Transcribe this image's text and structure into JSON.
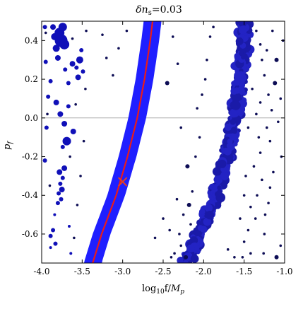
{
  "chart_data": {
    "type": "scatter",
    "title": "δn_s=0.03",
    "title_parts": [
      "δn",
      "s",
      "=0.03"
    ],
    "xlabel": "log10f/Mp",
    "xlabel_parts": [
      "log",
      "10",
      "f/",
      "M",
      "p"
    ],
    "ylabel": "p_f",
    "ylabel_parts": [
      "p",
      "f"
    ],
    "xlim": [
      -4.0,
      -1.0
    ],
    "ylim": [
      -0.75,
      0.5
    ],
    "xticks": [
      -4.0,
      -3.5,
      -3.0,
      -2.5,
      -2.0,
      -1.5,
      -1.0
    ],
    "xtick_labels": [
      "-4.0",
      "-3.5",
      "-3.0",
      "-2.5",
      "-2.0",
      "-1.5",
      "-1.0"
    ],
    "yticks": [
      -0.6,
      -0.4,
      -0.2,
      0.0,
      0.2,
      0.4
    ],
    "ytick_labels": [
      "-0.6",
      "-0.4",
      "-0.2",
      "0.0",
      "0.2",
      "0.4"
    ],
    "horizontal_reference_line": {
      "y": 0.0,
      "color": "#aaaaaa"
    },
    "colors": {
      "bright_band": "#1f1fff",
      "dark_band": "#1a1aa8",
      "scatter_points": "#0d0d55",
      "left_clusters": "#1010b8",
      "curve": "#e81c1c",
      "marker": "#e8401c"
    },
    "bright_band": {
      "description_points": [
        {
          "y": -0.75,
          "x": -3.37
        },
        {
          "y": -0.6,
          "x": -3.26
        },
        {
          "y": -0.4,
          "x": -3.08
        },
        {
          "y": -0.2,
          "x": -2.94
        },
        {
          "y": 0.0,
          "x": -2.82
        },
        {
          "y": 0.2,
          "x": -2.73
        },
        {
          "y": 0.4,
          "x": -2.66
        },
        {
          "y": 0.5,
          "x": -2.63
        }
      ],
      "half_width_x": 0.11
    },
    "red_curve": [
      {
        "x": -3.37,
        "y": -0.75
      },
      {
        "x": -3.26,
        "y": -0.6
      },
      {
        "x": -3.08,
        "y": -0.4
      },
      {
        "x": -2.94,
        "y": -0.2
      },
      {
        "x": -2.82,
        "y": 0.0
      },
      {
        "x": -2.73,
        "y": 0.2
      },
      {
        "x": -2.66,
        "y": 0.4
      },
      {
        "x": -2.63,
        "y": 0.5
      }
    ],
    "best_fit_marker": {
      "x": -3.0,
      "y": -0.33,
      "symbol": "x"
    },
    "dark_band": {
      "center_points": [
        {
          "y": -0.75,
          "x": -2.22
        },
        {
          "y": -0.6,
          "x": -2.05
        },
        {
          "y": -0.4,
          "x": -1.85
        },
        {
          "y": -0.2,
          "x": -1.71
        },
        {
          "y": 0.0,
          "x": -1.62
        },
        {
          "y": 0.2,
          "x": -1.55
        },
        {
          "y": 0.4,
          "x": -1.5
        },
        {
          "y": 0.5,
          "x": -1.48
        }
      ],
      "half_width_x": 0.1
    },
    "left_clusters": [
      {
        "x": -3.84,
        "y": 0.42,
        "size": 5
      },
      {
        "x": -3.82,
        "y": 0.36,
        "size": 5
      },
      {
        "x": -3.78,
        "y": 0.44,
        "size": 7
      },
      {
        "x": -3.76,
        "y": 0.4,
        "size": 9
      },
      {
        "x": -3.74,
        "y": 0.47,
        "size": 6
      },
      {
        "x": -3.72,
        "y": 0.38,
        "size": 7
      },
      {
        "x": -3.8,
        "y": 0.31,
        "size": 4
      },
      {
        "x": -3.86,
        "y": 0.47,
        "size": 4
      },
      {
        "x": -3.71,
        "y": 0.25,
        "size": 3
      },
      {
        "x": -3.67,
        "y": 0.18,
        "size": 3
      },
      {
        "x": -3.62,
        "y": 0.28,
        "size": 4
      },
      {
        "x": -3.57,
        "y": 0.26,
        "size": 3
      },
      {
        "x": -3.55,
        "y": 0.21,
        "size": 4
      },
      {
        "x": -3.53,
        "y": 0.3,
        "size": 5
      },
      {
        "x": -3.51,
        "y": 0.35,
        "size": 3
      },
      {
        "x": -3.49,
        "y": 0.24,
        "size": 3
      },
      {
        "x": -3.89,
        "y": 0.19,
        "size": 3
      },
      {
        "x": -3.95,
        "y": 0.29,
        "size": 3
      },
      {
        "x": -3.96,
        "y": 0.47,
        "size": 3
      },
      {
        "x": -3.92,
        "y": 0.11,
        "size": 3
      },
      {
        "x": -3.82,
        "y": 0.08,
        "size": 4
      },
      {
        "x": -3.77,
        "y": 0.02,
        "size": 4
      },
      {
        "x": -3.72,
        "y": -0.03,
        "size": 4
      },
      {
        "x": -3.67,
        "y": 0.06,
        "size": 3
      },
      {
        "x": -3.61,
        "y": -0.07,
        "size": 4
      },
      {
        "x": -3.69,
        "y": -0.12,
        "size": 6
      },
      {
        "x": -3.74,
        "y": -0.15,
        "size": 3
      },
      {
        "x": -3.94,
        "y": -0.05,
        "size": 3
      },
      {
        "x": -3.96,
        "y": -0.22,
        "size": 3
      },
      {
        "x": -3.78,
        "y": -0.28,
        "size": 4
      },
      {
        "x": -3.74,
        "y": -0.31,
        "size": 3
      },
      {
        "x": -3.72,
        "y": -0.26,
        "size": 4
      },
      {
        "x": -3.77,
        "y": -0.34,
        "size": 3
      },
      {
        "x": -3.79,
        "y": -0.39,
        "size": 3
      },
      {
        "x": -3.75,
        "y": -0.37,
        "size": 4
      },
      {
        "x": -3.8,
        "y": -0.44,
        "size": 3
      },
      {
        "x": -3.76,
        "y": -0.42,
        "size": 3
      },
      {
        "x": -3.86,
        "y": -0.58,
        "size": 3
      },
      {
        "x": -3.89,
        "y": -0.61,
        "size": 3
      },
      {
        "x": -3.83,
        "y": -0.65,
        "size": 3
      },
      {
        "x": -3.89,
        "y": -0.67,
        "size": 2
      },
      {
        "x": -3.84,
        "y": -0.5,
        "size": 2
      },
      {
        "x": -3.66,
        "y": -0.56,
        "size": 2
      },
      {
        "x": -3.64,
        "y": -0.7,
        "size": 2
      }
    ],
    "scatter_points": [
      {
        "x": -3.95,
        "y": 0.44
      },
      {
        "x": -3.93,
        "y": 0.02
      },
      {
        "x": -3.9,
        "y": -0.35
      },
      {
        "x": -3.62,
        "y": 0.41
      },
      {
        "x": -3.58,
        "y": 0.07
      },
      {
        "x": -3.65,
        "y": -0.2
      },
      {
        "x": -3.56,
        "y": -0.45
      },
      {
        "x": -3.6,
        "y": -0.62
      },
      {
        "x": -3.46,
        "y": 0.15
      },
      {
        "x": -3.48,
        "y": -0.12
      },
      {
        "x": -3.52,
        "y": -0.3
      },
      {
        "x": -3.45,
        "y": 0.45
      },
      {
        "x": -3.25,
        "y": 0.43
      },
      {
        "x": -3.2,
        "y": 0.31
      },
      {
        "x": -3.05,
        "y": 0.36
      },
      {
        "x": -2.95,
        "y": 0.45
      },
      {
        "x": -3.12,
        "y": 0.22
      },
      {
        "x": -2.38,
        "y": 0.42
      },
      {
        "x": -2.32,
        "y": 0.28
      },
      {
        "x": -2.45,
        "y": 0.18
      },
      {
        "x": -2.28,
        "y": -0.05
      },
      {
        "x": -2.42,
        "y": -0.58
      },
      {
        "x": -2.5,
        "y": -0.52
      },
      {
        "x": -2.6,
        "y": -0.62
      },
      {
        "x": -2.36,
        "y": -0.7
      },
      {
        "x": -2.2,
        "y": -0.25
      },
      {
        "x": -2.14,
        "y": -0.38
      },
      {
        "x": -2.18,
        "y": -0.45
      },
      {
        "x": -2.25,
        "y": -0.5
      },
      {
        "x": -2.1,
        "y": -0.2
      },
      {
        "x": -2.3,
        "y": -0.6
      },
      {
        "x": -2.28,
        "y": -0.66
      },
      {
        "x": -2.16,
        "y": -0.55
      },
      {
        "x": -2.08,
        "y": 0.05
      },
      {
        "x": -2.02,
        "y": 0.12
      },
      {
        "x": -1.96,
        "y": 0.3
      },
      {
        "x": -1.92,
        "y": 0.42
      },
      {
        "x": -2.05,
        "y": -0.1
      },
      {
        "x": -1.98,
        "y": 0.2
      },
      {
        "x": -1.88,
        "y": 0.47
      },
      {
        "x": -1.35,
        "y": 0.45
      },
      {
        "x": -1.3,
        "y": 0.38
      },
      {
        "x": -1.28,
        "y": 0.3
      },
      {
        "x": -1.25,
        "y": 0.22
      },
      {
        "x": -1.2,
        "y": 0.12
      },
      {
        "x": -1.3,
        "y": 0.08
      },
      {
        "x": -1.35,
        "y": 0.02
      },
      {
        "x": -1.22,
        "y": -0.05
      },
      {
        "x": -1.18,
        "y": -0.12
      },
      {
        "x": -1.3,
        "y": -0.18
      },
      {
        "x": -1.38,
        "y": -0.25
      },
      {
        "x": -1.28,
        "y": -0.32
      },
      {
        "x": -1.34,
        "y": -0.4
      },
      {
        "x": -1.42,
        "y": -0.46
      },
      {
        "x": -1.36,
        "y": -0.52
      },
      {
        "x": -1.45,
        "y": -0.58
      },
      {
        "x": -1.5,
        "y": -0.64
      },
      {
        "x": -1.42,
        "y": -0.7
      },
      {
        "x": -1.52,
        "y": -0.72
      },
      {
        "x": -1.15,
        "y": 0.45
      },
      {
        "x": -1.1,
        "y": 0.3
      },
      {
        "x": -1.12,
        "y": 0.18
      },
      {
        "x": -1.08,
        "y": -0.02
      },
      {
        "x": -1.14,
        "y": -0.28
      },
      {
        "x": -1.2,
        "y": -0.44
      },
      {
        "x": -1.25,
        "y": -0.6
      },
      {
        "x": -1.05,
        "y": -0.66
      },
      {
        "x": -1.1,
        "y": -0.72
      },
      {
        "x": -1.26,
        "y": -0.7
      },
      {
        "x": -1.62,
        "y": -0.72
      },
      {
        "x": -1.7,
        "y": -0.68
      },
      {
        "x": -1.02,
        "y": 0.4
      },
      {
        "x": -1.05,
        "y": 0.1
      },
      {
        "x": -1.04,
        "y": -0.2
      },
      {
        "x": -1.16,
        "y": 0.04
      },
      {
        "x": -1.4,
        "y": 0.15
      },
      {
        "x": -1.45,
        "y": -0.05
      },
      {
        "x": -1.48,
        "y": -0.3
      },
      {
        "x": -1.22,
        "y": 0.35
      },
      {
        "x": -1.32,
        "y": -0.1
      },
      {
        "x": -1.24,
        "y": -0.5
      },
      {
        "x": -1.5,
        "y": -0.4
      },
      {
        "x": -1.55,
        "y": -0.52
      },
      {
        "x": -1.18,
        "y": -0.36
      },
      {
        "x": -2.4,
        "y": -0.72
      },
      {
        "x": -2.33,
        "y": -0.42
      },
      {
        "x": -2.22,
        "y": -0.72
      }
    ]
  }
}
